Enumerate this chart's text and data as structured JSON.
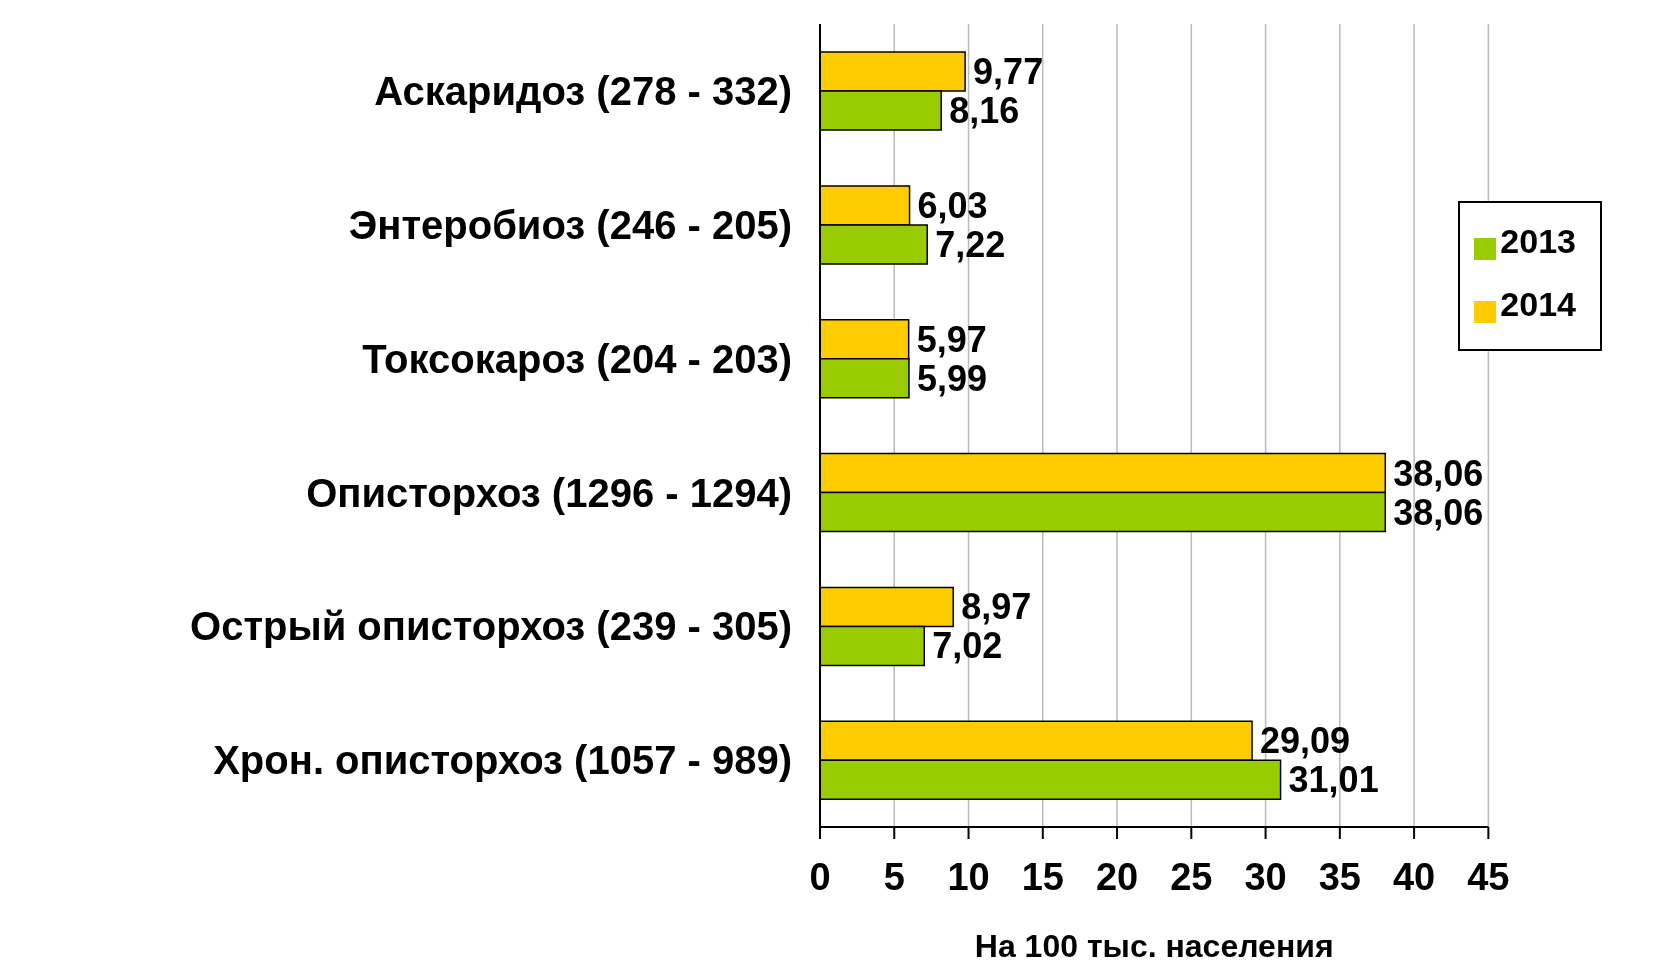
{
  "chart_data": {
    "type": "bar",
    "orientation": "horizontal",
    "categories": [
      "Аскаридоз (278 - 332)",
      "Энтеробиоз (246 - 205)",
      "Токсокароз (204 - 203)",
      "Описторхоз (1296 - 1294)",
      "Острый описторхоз (239 - 305)",
      "Хрон. описторхоз (1057 - 989)"
    ],
    "series": [
      {
        "name": "2014",
        "color": "#ffcc00",
        "values": [
          9.77,
          6.03,
          5.97,
          38.06,
          8.97,
          29.09
        ],
        "value_labels": [
          "9,77",
          "6,03",
          "5,97",
          "38,06",
          "8,97",
          "29,09"
        ]
      },
      {
        "name": "2013",
        "color": "#99cc00",
        "values": [
          8.16,
          7.22,
          5.99,
          38.06,
          7.02,
          31.01
        ],
        "value_labels": [
          "8,16",
          "7,22",
          "5,99",
          "38,06",
          "7,02",
          "31,01"
        ]
      }
    ],
    "xlabel": "На 100 тыс. населения",
    "xlim": [
      0,
      45
    ],
    "xticks": [
      0,
      5,
      10,
      15,
      20,
      25,
      30,
      35,
      40,
      45
    ],
    "grid": "x",
    "legend": "top right"
  }
}
